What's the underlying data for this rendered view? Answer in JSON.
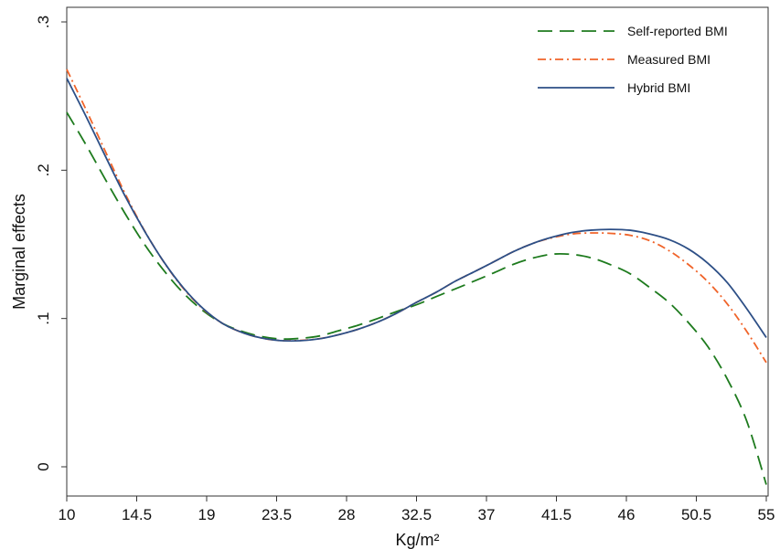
{
  "chart_data": {
    "type": "line",
    "title": "",
    "xlabel": "Kg/m²",
    "ylabel": "Marginal effects",
    "xlim": [
      10,
      55
    ],
    "ylim": [
      0,
      0.3
    ],
    "x_ticks": [
      10,
      14.5,
      19,
      23.5,
      28,
      32.5,
      37,
      41.5,
      46,
      50.5,
      55
    ],
    "x_tick_labels": [
      "10",
      "14.5",
      "19",
      "23.5",
      "28",
      "32.5",
      "37",
      "41.5",
      "46",
      "50.5",
      "55"
    ],
    "y_ticks": [
      0,
      0.1,
      0.2,
      0.3
    ],
    "y_tick_labels": [
      "0",
      ".1",
      ".2",
      ".3"
    ],
    "grid": false,
    "legend_position": "top-right",
    "series": [
      {
        "name": "Self-reported BMI",
        "color": "#1e7b1e",
        "dash": "long-dash",
        "x": [
          10,
          11.25,
          12.5,
          13.75,
          15,
          16.25,
          17.5,
          18.75,
          20,
          21.25,
          22.5,
          23.75,
          25,
          26.25,
          27.5,
          28.75,
          30,
          31.25,
          32.5,
          33.75,
          35,
          36.25,
          37.5,
          38.75,
          40,
          41.25,
          42.5,
          43.75,
          45,
          46.25,
          47.5,
          48.75,
          50,
          51.25,
          52.5,
          53.75,
          55
        ],
        "values": [
          0.239,
          0.2169,
          0.1935,
          0.1708,
          0.15,
          0.1323,
          0.1172,
          0.1054,
          0.0968,
          0.0914,
          0.0879,
          0.0862,
          0.0866,
          0.0882,
          0.0918,
          0.0955,
          0.1,
          0.1048,
          0.1093,
          0.1147,
          0.12,
          0.1254,
          0.1309,
          0.1366,
          0.1408,
          0.1434,
          0.1432,
          0.1409,
          0.1362,
          0.1301,
          0.1209,
          0.1107,
          0.0971,
          0.0809,
          0.059,
          0.0306,
          -0.012
        ]
      },
      {
        "name": "Measured BMI",
        "color": "#f0642a",
        "dash": "dash-dot",
        "x": [
          10,
          11.25,
          12.5,
          13.75,
          15,
          16.25,
          17.5,
          18.75,
          20,
          21.25,
          22.5,
          23.75,
          25,
          26.25,
          27.5,
          28.75,
          30,
          31.25,
          32.5,
          33.75,
          35,
          36.25,
          37.5,
          38.75,
          40,
          41.25,
          42.5,
          43.75,
          45,
          46.25,
          47.5,
          48.75,
          50,
          51.25,
          52.5,
          53.75,
          55
        ],
        "values": [
          0.268,
          0.2406,
          0.2123,
          0.1843,
          0.1593,
          0.138,
          0.1203,
          0.1066,
          0.0968,
          0.0907,
          0.0869,
          0.0851,
          0.0852,
          0.0864,
          0.0891,
          0.0928,
          0.0976,
          0.1037,
          0.1109,
          0.1176,
          0.1252,
          0.1317,
          0.1384,
          0.1452,
          0.1507,
          0.1545,
          0.157,
          0.1577,
          0.1574,
          0.1561,
          0.1525,
          0.1457,
          0.1363,
          0.1247,
          0.1097,
          0.0912,
          0.0703
        ]
      },
      {
        "name": "Hybrid BMI",
        "color": "#2d4f86",
        "dash": "solid",
        "x": [
          10,
          11.25,
          12.5,
          13.75,
          15,
          16.25,
          17.5,
          18.75,
          20,
          21.25,
          22.5,
          23.75,
          25,
          26.25,
          27.5,
          28.75,
          30,
          31.25,
          32.5,
          33.75,
          35,
          36.25,
          37.5,
          38.75,
          40,
          41.25,
          42.5,
          43.75,
          45,
          46.25,
          47.5,
          48.75,
          50,
          51.25,
          52.5,
          53.75,
          55
        ],
        "values": [
          0.262,
          0.2361,
          0.2091,
          0.1826,
          0.159,
          0.1381,
          0.1207,
          0.1069,
          0.0968,
          0.0907,
          0.0869,
          0.0851,
          0.085,
          0.0863,
          0.0891,
          0.0928,
          0.0976,
          0.1037,
          0.1109,
          0.1176,
          0.1252,
          0.1317,
          0.1384,
          0.1452,
          0.1507,
          0.1549,
          0.158,
          0.1596,
          0.1601,
          0.1595,
          0.157,
          0.1532,
          0.1468,
          0.1372,
          0.1241,
          0.1065,
          0.0872
        ]
      }
    ]
  }
}
